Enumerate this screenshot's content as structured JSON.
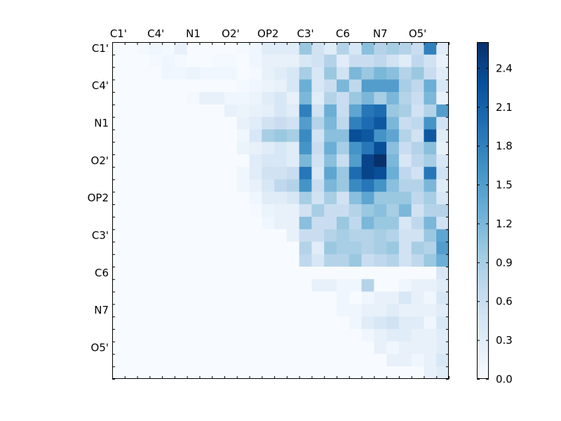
{
  "chart_data": {
    "type": "heatmap",
    "colormap": "Blues",
    "colors": {
      "low": "#f7fbff",
      "mid": "#6baed6",
      "high": "#08306b"
    },
    "atom_labels": [
      "C1'",
      "C4'",
      "N1",
      "O2'",
      "OP2",
      "C3'",
      "C6",
      "N7",
      "O5'"
    ],
    "label_positions": [
      0,
      3,
      6,
      9,
      12,
      15,
      18,
      21,
      24
    ],
    "n": 27,
    "vmin": 0.0,
    "vmax": 2.6,
    "colorbar_ticks": [
      "0.0",
      "0.3",
      "0.6",
      "0.9",
      "1.2",
      "1.5",
      "1.8",
      "2.1",
      "2.4"
    ],
    "matrix": [
      [
        0,
        0,
        0.05,
        0.1,
        0.05,
        0.2,
        0,
        0,
        0,
        0,
        0.05,
        0.1,
        0.3,
        0.3,
        0.3,
        1.0,
        0.5,
        0.3,
        0.8,
        0.4,
        1.1,
        0.8,
        0.9,
        0.8,
        0.6,
        1.8,
        0.3
      ],
      [
        0,
        0,
        0,
        0.05,
        0.1,
        0.05,
        0,
        0,
        0.05,
        0.05,
        0,
        0.1,
        0.2,
        0.2,
        0.2,
        0.4,
        0.5,
        0.8,
        0.3,
        0.6,
        0.6,
        0.7,
        0.5,
        0.3,
        0.7,
        0.5,
        0.2
      ],
      [
        0,
        0,
        0,
        0,
        0.1,
        0.1,
        0.15,
        0.1,
        0.1,
        0.1,
        0,
        0.05,
        0.2,
        0.3,
        0.4,
        0.9,
        0.4,
        1.0,
        0.5,
        1.2,
        1.0,
        1.2,
        1.1,
        0.8,
        1.0,
        0.6,
        0.3
      ],
      [
        0,
        0,
        0,
        0,
        0,
        0,
        0,
        0,
        0,
        0,
        0.05,
        0.1,
        0.15,
        0.2,
        0.4,
        1.3,
        0.4,
        0.6,
        1.2,
        0.7,
        1.5,
        1.5,
        1.5,
        0.9,
        0.7,
        1.3,
        0.4
      ],
      [
        0,
        0,
        0,
        0,
        0,
        0,
        0.05,
        0.2,
        0.2,
        0.1,
        0.1,
        0.15,
        0.3,
        0.4,
        0.2,
        1.2,
        0.3,
        0.8,
        0.6,
        1.0,
        1.2,
        0.9,
        1.2,
        0.8,
        0.6,
        1.2,
        0.2
      ],
      [
        0,
        0,
        0,
        0,
        0,
        0,
        0,
        0,
        0,
        0.2,
        0.15,
        0.2,
        0.25,
        0.4,
        0.3,
        1.8,
        0.5,
        1.3,
        0.6,
        1.4,
        1.9,
        2.0,
        1.0,
        0.9,
        0.5,
        0.8,
        1.5
      ],
      [
        0,
        0,
        0,
        0,
        0,
        0,
        0,
        0,
        0,
        0,
        0.2,
        0.3,
        0.5,
        0.6,
        0.5,
        1.5,
        0.8,
        1.2,
        0.7,
        1.8,
        2.0,
        2.2,
        1.2,
        0.6,
        0.7,
        1.6,
        0.5
      ],
      [
        0,
        0,
        0,
        0,
        0,
        0,
        0,
        0,
        0,
        0,
        0.1,
        0.4,
        0.9,
        1.0,
        0.9,
        1.7,
        0.5,
        1.1,
        1.1,
        2.3,
        2.2,
        1.6,
        1.4,
        0.8,
        0.5,
        2.2,
        0.3
      ],
      [
        0,
        0,
        0,
        0,
        0,
        0,
        0,
        0,
        0,
        0,
        0.15,
        0.2,
        0.3,
        0.4,
        0.3,
        1.6,
        0.6,
        1.3,
        0.9,
        1.6,
        1.9,
        2.3,
        1.1,
        0.6,
        0.8,
        1.1,
        0.2
      ],
      [
        0,
        0,
        0,
        0,
        0,
        0,
        0,
        0,
        0,
        0,
        0,
        0.3,
        0.4,
        0.4,
        0.3,
        1.2,
        0.5,
        1.1,
        0.6,
        1.5,
        2.4,
        2.6,
        1.2,
        0.4,
        0.7,
        0.9,
        0.4
      ],
      [
        0,
        0,
        0,
        0,
        0,
        0,
        0,
        0,
        0,
        0,
        0.1,
        0.3,
        0.5,
        0.5,
        0.6,
        1.9,
        0.4,
        1.4,
        1.0,
        2.0,
        2.4,
        2.3,
        1.3,
        0.7,
        0.5,
        1.9,
        0.5
      ],
      [
        0,
        0,
        0,
        0,
        0,
        0,
        0,
        0,
        0,
        0,
        0.1,
        0.2,
        0.4,
        0.7,
        0.8,
        1.6,
        0.6,
        1.2,
        1.0,
        1.7,
        1.9,
        1.6,
        1.1,
        0.8,
        0.8,
        1.2,
        0.3
      ],
      [
        0,
        0,
        0,
        0,
        0,
        0,
        0,
        0,
        0,
        0,
        0,
        0.1,
        0.3,
        0.3,
        0.4,
        0.9,
        0.5,
        0.9,
        0.5,
        1.1,
        1.4,
        1.0,
        1.0,
        1.0,
        0.7,
        0.9,
        0.4
      ],
      [
        0,
        0,
        0,
        0,
        0,
        0,
        0,
        0,
        0,
        0,
        0,
        0.05,
        0.15,
        0.2,
        0.2,
        0.5,
        0.9,
        0.6,
        0.6,
        0.8,
        1.0,
        1.1,
        0.9,
        1.2,
        0.5,
        0.8,
        0.8
      ],
      [
        0,
        0,
        0,
        0,
        0,
        0,
        0,
        0,
        0,
        0,
        0,
        0,
        0.1,
        0.2,
        0.2,
        1.1,
        0.6,
        0.6,
        1.0,
        0.7,
        1.2,
        1.0,
        1.0,
        0.4,
        0.7,
        1.2,
        0.5
      ],
      [
        0,
        0,
        0,
        0,
        0,
        0,
        0,
        0,
        0,
        0,
        0,
        0,
        0,
        0,
        0.2,
        0.6,
        0.6,
        0.8,
        0.9,
        0.8,
        0.8,
        0.9,
        0.8,
        0.5,
        0.5,
        1.0,
        1.4
      ],
      [
        0,
        0,
        0,
        0,
        0,
        0,
        0,
        0,
        0,
        0,
        0,
        0,
        0,
        0,
        0,
        0.8,
        0.3,
        1.0,
        0.9,
        0.9,
        0.8,
        0.9,
        1.0,
        0.5,
        0.9,
        0.8,
        1.5
      ],
      [
        0,
        0,
        0,
        0,
        0,
        0,
        0,
        0,
        0,
        0,
        0,
        0,
        0,
        0,
        0,
        0.7,
        0.4,
        0.8,
        0.8,
        1.0,
        0.6,
        0.7,
        0.8,
        0.5,
        0.7,
        1.0,
        1.3
      ],
      [
        0,
        0,
        0,
        0,
        0,
        0,
        0,
        0,
        0,
        0,
        0,
        0,
        0,
        0,
        0,
        0,
        0,
        0,
        0,
        0,
        0,
        0,
        0,
        0,
        0,
        0,
        0.4
      ],
      [
        0,
        0,
        0,
        0,
        0,
        0,
        0,
        0,
        0,
        0,
        0,
        0,
        0,
        0,
        0,
        0,
        0.2,
        0.2,
        0.1,
        0.1,
        0.8,
        0,
        0,
        0.1,
        0.2,
        0.2,
        0.3
      ],
      [
        0,
        0,
        0,
        0,
        0,
        0,
        0,
        0,
        0,
        0,
        0,
        0,
        0,
        0,
        0,
        0,
        0,
        0,
        0.1,
        0,
        0.1,
        0.2,
        0.2,
        0.4,
        0.2,
        0.1,
        0.4
      ],
      [
        0,
        0,
        0,
        0,
        0,
        0,
        0,
        0,
        0,
        0,
        0,
        0,
        0,
        0,
        0,
        0,
        0,
        0,
        0.1,
        0.1,
        0.2,
        0.2,
        0.3,
        0.2,
        0.2,
        0.2,
        0.3
      ],
      [
        0,
        0,
        0,
        0,
        0,
        0,
        0,
        0,
        0,
        0,
        0,
        0,
        0,
        0,
        0,
        0,
        0,
        0,
        0,
        0.1,
        0.3,
        0.4,
        0.5,
        0.3,
        0.3,
        0.1,
        0.4
      ],
      [
        0,
        0,
        0,
        0,
        0,
        0,
        0,
        0,
        0,
        0,
        0,
        0,
        0,
        0,
        0,
        0,
        0,
        0,
        0,
        0,
        0.1,
        0.2,
        0.3,
        0.3,
        0.2,
        0.2,
        0.3
      ],
      [
        0,
        0,
        0,
        0,
        0,
        0,
        0,
        0,
        0,
        0,
        0,
        0,
        0,
        0,
        0,
        0,
        0,
        0,
        0,
        0,
        0,
        0.2,
        0.1,
        0.2,
        0.2,
        0.2,
        0.3
      ],
      [
        0,
        0,
        0,
        0,
        0,
        0,
        0,
        0,
        0,
        0,
        0,
        0,
        0,
        0,
        0,
        0,
        0,
        0,
        0,
        0,
        0,
        0,
        0.2,
        0.2,
        0.1,
        0.2,
        0.4
      ],
      [
        0,
        0,
        0,
        0,
        0,
        0,
        0,
        0,
        0,
        0,
        0,
        0,
        0,
        0,
        0,
        0,
        0,
        0,
        0,
        0,
        0,
        0,
        0,
        0,
        0,
        0.2,
        0.3
      ]
    ]
  }
}
